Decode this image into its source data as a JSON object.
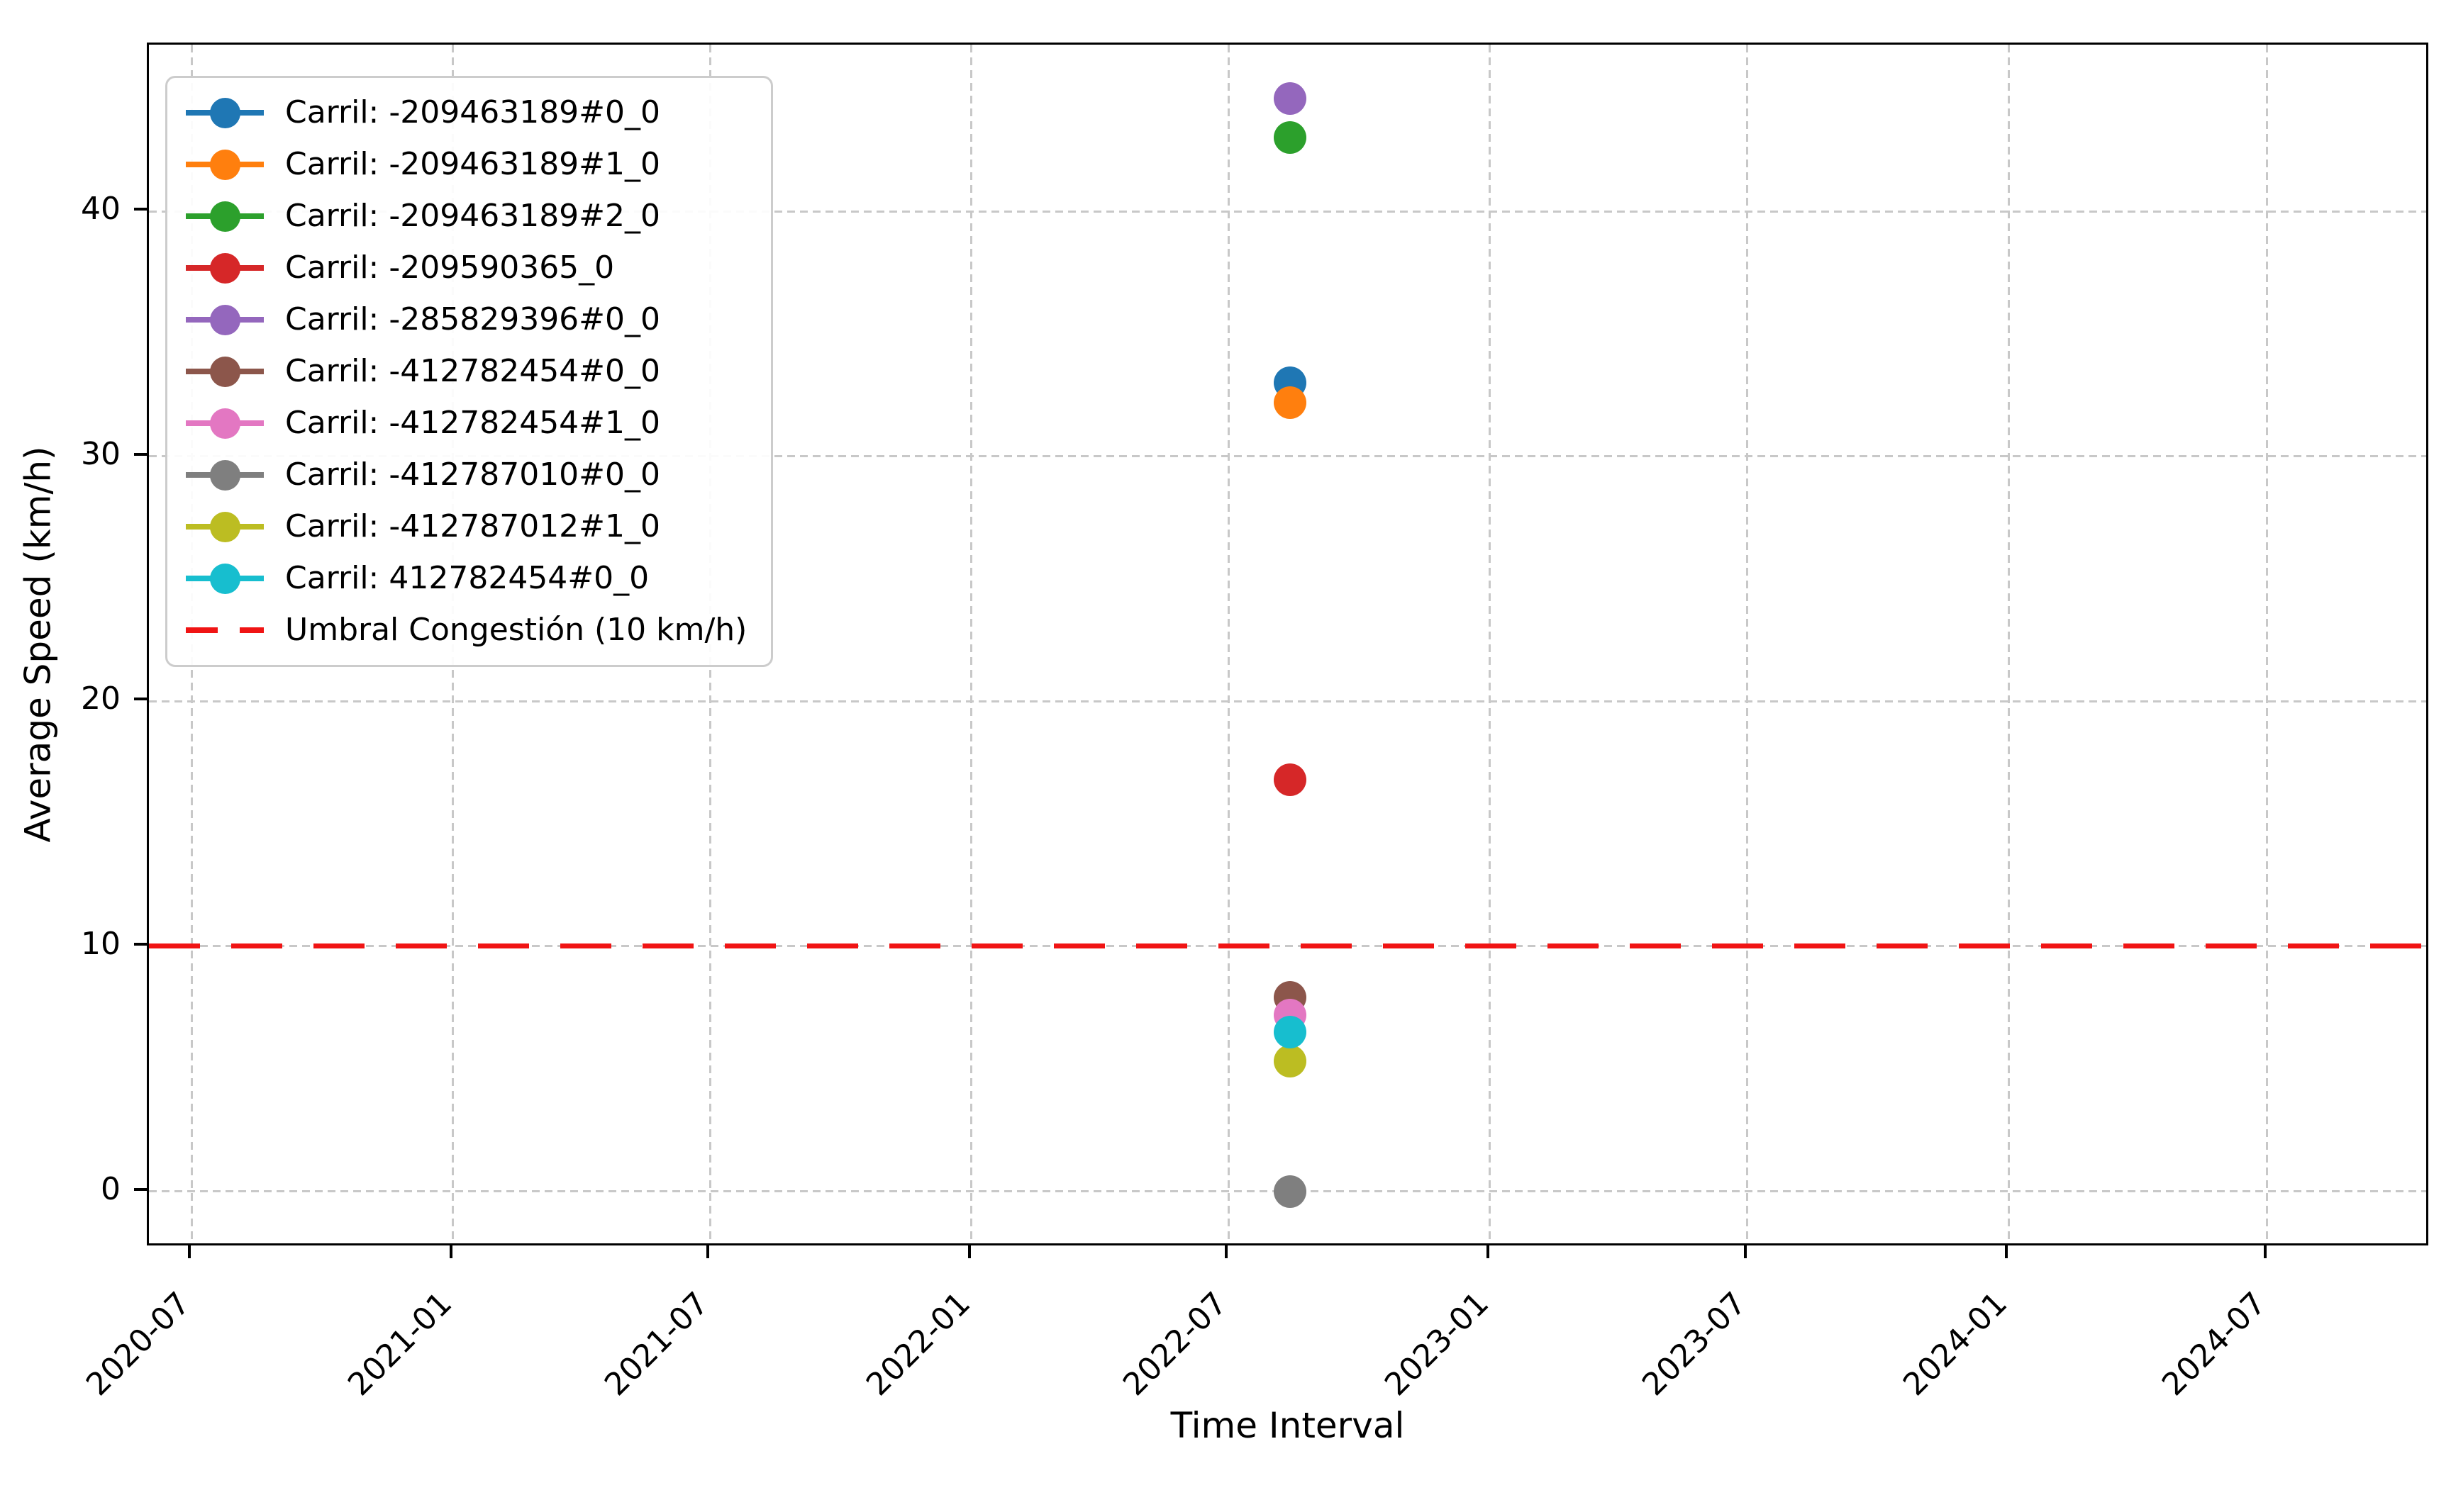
{
  "chart_data": {
    "type": "scatter",
    "title": "",
    "xlabel": "Time Interval",
    "ylabel": "Average Speed (km/h)",
    "grid": true,
    "legend_position": "upper left",
    "x_axis": {
      "kind": "date",
      "tick_labels": [
        "2020-07",
        "2021-01",
        "2021-07",
        "2022-01",
        "2022-07",
        "2023-01",
        "2023-07",
        "2024-01",
        "2024-07"
      ],
      "tick_offsets_days": [
        0,
        184,
        365,
        549,
        730,
        914,
        1095,
        1279,
        1461
      ],
      "range_days": [
        -30,
        1576
      ]
    },
    "y_axis": {
      "tick_labels": [
        "0",
        "10",
        "20",
        "30",
        "40"
      ],
      "ticks": [
        0,
        10,
        20,
        30,
        40
      ],
      "range": [
        -2.3,
        46.8
      ]
    },
    "point_date_approx": "2022-08",
    "point_offset_days": 773,
    "series": [
      {
        "label": "Carril: -209463189#0_0",
        "color": "#1f77b4",
        "x_day": 773,
        "y": 33.0
      },
      {
        "label": "Carril: -209463189#1_0",
        "color": "#ff7f0e",
        "x_day": 773,
        "y": 32.2
      },
      {
        "label": "Carril: -209463189#2_0",
        "color": "#2ca02c",
        "x_day": 773,
        "y": 43.0
      },
      {
        "label": "Carril: -209590365_0",
        "color": "#d62728",
        "x_day": 773,
        "y": 16.8
      },
      {
        "label": "Carril: -285829396#0_0",
        "color": "#9467bd",
        "x_day": 773,
        "y": 44.6
      },
      {
        "label": "Carril: -412782454#0_0",
        "color": "#8c564b",
        "x_day": 773,
        "y": 7.9
      },
      {
        "label": "Carril: -412782454#1_0",
        "color": "#e377c2",
        "x_day": 773,
        "y": 7.2
      },
      {
        "label": "Carril: -412787010#0_0",
        "color": "#7f7f7f",
        "x_day": 773,
        "y": 0.0
      },
      {
        "label": "Carril: -412787012#1_0",
        "color": "#bcbd22",
        "x_day": 773,
        "y": 5.3
      },
      {
        "label": "Carril: 412782454#0_0",
        "color": "#17becf",
        "x_day": 773,
        "y": 6.5
      }
    ],
    "threshold": {
      "label": "Umbral Congestión (10 km/h)",
      "value": 10,
      "color": "#f01414",
      "style": "dashed"
    }
  }
}
